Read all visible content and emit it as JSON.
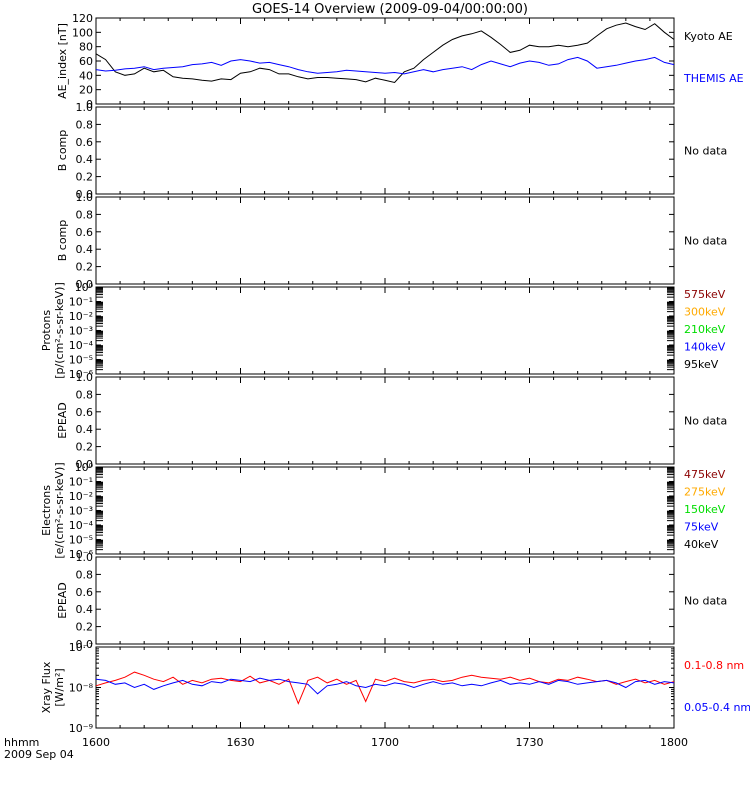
{
  "title": "GOES-14 Overview (2009-09-04/00:00:00)",
  "footer": {
    "line1": "hhmm",
    "line2": "2009 Sep 04"
  },
  "x_ticks": [
    "1600",
    "1630",
    "1700",
    "1730",
    "1800"
  ],
  "colors": {
    "black": "#000000",
    "blue": "#0000ff",
    "red": "#ff0000",
    "dark_red": "#8b0000",
    "orange": "#ffaa00",
    "green": "#00dd00"
  },
  "chart_data": [
    {
      "panel": "ae",
      "type": "line",
      "ylabel": "AE_index [nT]",
      "ylim": [
        0,
        120
      ],
      "y_ticks": [
        "0",
        "20",
        "40",
        "60",
        "80",
        "100",
        "120"
      ],
      "x_range_minutes": [
        0,
        120
      ],
      "series": [
        {
          "name": "Kyoto AE",
          "color": "#000000",
          "x": [
            0,
            2,
            4,
            6,
            8,
            10,
            12,
            14,
            16,
            18,
            20,
            22,
            24,
            26,
            28,
            30,
            32,
            34,
            36,
            38,
            40,
            42,
            44,
            46,
            48,
            50,
            52,
            54,
            56,
            58,
            60,
            62,
            64,
            66,
            68,
            70,
            72,
            74,
            76,
            78,
            80,
            82,
            84,
            86,
            88,
            90,
            92,
            94,
            96,
            98,
            100,
            102,
            104,
            106,
            108,
            110,
            112,
            114,
            116,
            118,
            120
          ],
          "y": [
            70,
            62,
            45,
            40,
            42,
            50,
            45,
            47,
            38,
            36,
            35,
            33,
            32,
            35,
            34,
            43,
            45,
            50,
            48,
            42,
            42,
            38,
            35,
            37,
            37,
            36,
            35,
            34,
            31,
            36,
            33,
            30,
            45,
            50,
            62,
            72,
            82,
            90,
            95,
            98,
            102,
            93,
            83,
            72,
            75,
            82,
            80,
            80,
            82,
            80,
            82,
            85,
            95,
            105,
            110,
            113,
            108,
            104,
            112,
            100,
            90
          ]
        },
        {
          "name": "THEMIS AE",
          "color": "#0000ff",
          "x": [
            0,
            2,
            4,
            6,
            8,
            10,
            12,
            14,
            16,
            18,
            20,
            22,
            24,
            26,
            28,
            30,
            32,
            34,
            36,
            38,
            40,
            42,
            44,
            46,
            48,
            50,
            52,
            54,
            56,
            58,
            60,
            62,
            64,
            66,
            68,
            70,
            72,
            74,
            76,
            78,
            80,
            82,
            84,
            86,
            88,
            90,
            92,
            94,
            96,
            98,
            100,
            102,
            104,
            106,
            108,
            110,
            112,
            114,
            116,
            118,
            120
          ],
          "y": [
            48,
            46,
            47,
            49,
            50,
            52,
            48,
            50,
            51,
            52,
            55,
            56,
            58,
            54,
            60,
            62,
            60,
            57,
            58,
            55,
            52,
            48,
            45,
            43,
            44,
            45,
            47,
            46,
            45,
            44,
            43,
            44,
            42,
            45,
            48,
            45,
            48,
            50,
            52,
            48,
            55,
            60,
            56,
            52,
            57,
            60,
            58,
            54,
            56,
            62,
            65,
            60,
            50,
            52,
            54,
            57,
            60,
            62,
            65,
            58,
            55
          ]
        }
      ]
    },
    {
      "panel": "b1",
      "type": "line",
      "ylabel": "B comp",
      "ylim": [
        0,
        1
      ],
      "y_ticks": [
        "0.0",
        "0.2",
        "0.4",
        "0.6",
        "0.8",
        "1.0"
      ],
      "note": "No data",
      "series": []
    },
    {
      "panel": "b2",
      "type": "line",
      "ylabel": "B comp",
      "ylim": [
        0,
        1
      ],
      "y_ticks": [
        "0.0",
        "0.2",
        "0.4",
        "0.6",
        "0.8",
        "1.0"
      ],
      "note": "No data",
      "series": []
    },
    {
      "panel": "protons",
      "type": "line",
      "scale": "log",
      "ylabel_1": "Protons",
      "ylabel_2": "[p/(cm²-s-sr-keV)]",
      "ylim": [
        1e-06,
        1
      ],
      "y_ticks": [
        "10⁻⁶",
        "10⁻⁵",
        "10⁻⁴",
        "10⁻³",
        "10⁻²",
        "10⁻¹",
        "10⁰"
      ],
      "legend": [
        {
          "label": "575keV",
          "color": "#8b0000"
        },
        {
          "label": "300keV",
          "color": "#ffaa00"
        },
        {
          "label": "210keV",
          "color": "#00dd00"
        },
        {
          "label": "140keV",
          "color": "#0000ff"
        },
        {
          "label": "95keV",
          "color": "#000000"
        }
      ],
      "series": []
    },
    {
      "panel": "epead1",
      "type": "line",
      "ylabel": "EPEAD",
      "ylim": [
        0,
        1
      ],
      "y_ticks": [
        "0.0",
        "0.2",
        "0.4",
        "0.6",
        "0.8",
        "1.0"
      ],
      "note": "No data",
      "series": []
    },
    {
      "panel": "electrons",
      "type": "line",
      "scale": "log",
      "ylabel_1": "Electrons",
      "ylabel_2": "[e/(cm²-s-sr-keV)]",
      "ylim": [
        1e-06,
        1
      ],
      "y_ticks": [
        "10⁻⁶",
        "10⁻⁵",
        "10⁻⁴",
        "10⁻³",
        "10⁻²",
        "10⁻¹",
        "10⁰"
      ],
      "legend": [
        {
          "label": "475keV",
          "color": "#8b0000"
        },
        {
          "label": "275keV",
          "color": "#ffaa00"
        },
        {
          "label": "150keV",
          "color": "#00dd00"
        },
        {
          "label": "75keV",
          "color": "#0000ff"
        },
        {
          "label": "40keV",
          "color": "#000000"
        }
      ],
      "series": []
    },
    {
      "panel": "epead2",
      "type": "line",
      "ylabel": "EPEAD",
      "ylim": [
        0,
        1
      ],
      "y_ticks": [
        "0.0",
        "0.2",
        "0.4",
        "0.6",
        "0.8",
        "1.0"
      ],
      "note": "No data",
      "series": []
    },
    {
      "panel": "xray",
      "type": "line",
      "scale": "log",
      "ylabel_1": "Xray Flux",
      "ylabel_2": "[W/m²]",
      "ylim": [
        1e-09,
        1e-07
      ],
      "y_ticks": [
        "10⁻⁹",
        "10⁻⁸",
        "10⁻⁷"
      ],
      "x_range_minutes": [
        0,
        120
      ],
      "series": [
        {
          "name": "0.1-0.8 nm",
          "color": "#ff0000",
          "x": [
            0,
            2,
            4,
            6,
            8,
            10,
            12,
            14,
            16,
            18,
            20,
            22,
            24,
            26,
            28,
            30,
            32,
            34,
            36,
            38,
            40,
            42,
            44,
            46,
            48,
            50,
            52,
            54,
            56,
            58,
            60,
            62,
            64,
            66,
            68,
            70,
            72,
            74,
            76,
            78,
            80,
            82,
            84,
            86,
            88,
            90,
            92,
            94,
            96,
            98,
            100,
            102,
            104,
            106,
            108,
            110,
            112,
            114,
            116,
            118,
            120
          ],
          "y": [
            1.1e-08,
            1.3e-08,
            1.5e-08,
            1.8e-08,
            2.4e-08,
            2e-08,
            1.6e-08,
            1.4e-08,
            1.8e-08,
            1.2e-08,
            1.5e-08,
            1.3e-08,
            1.6e-08,
            1.7e-08,
            1.5e-08,
            1.4e-08,
            1.9e-08,
            1.3e-08,
            1.5e-08,
            1.2e-08,
            1.6e-08,
            4e-09,
            1.5e-08,
            1.8e-08,
            1.3e-08,
            1.6e-08,
            1.2e-08,
            1.5e-08,
            4.5e-09,
            1.6e-08,
            1.4e-08,
            1.7e-08,
            1.4e-08,
            1.3e-08,
            1.5e-08,
            1.6e-08,
            1.4e-08,
            1.5e-08,
            1.8e-08,
            2e-08,
            1.8e-08,
            1.7e-08,
            1.6e-08,
            1.8e-08,
            1.5e-08,
            1.7e-08,
            1.4e-08,
            1.3e-08,
            1.6e-08,
            1.5e-08,
            1.8e-08,
            1.6e-08,
            1.4e-08,
            1.5e-08,
            1.2e-08,
            1.4e-08,
            1.6e-08,
            1.3e-08,
            1.5e-08,
            1.2e-08,
            1.4e-08
          ]
        },
        {
          "name": "0.05-0.4 nm",
          "color": "#0000ff",
          "x": [
            0,
            2,
            4,
            6,
            8,
            10,
            12,
            14,
            16,
            18,
            20,
            22,
            24,
            26,
            28,
            30,
            32,
            34,
            36,
            38,
            40,
            42,
            44,
            46,
            48,
            50,
            52,
            54,
            56,
            58,
            60,
            62,
            64,
            66,
            68,
            70,
            72,
            74,
            76,
            78,
            80,
            82,
            84,
            86,
            88,
            90,
            92,
            94,
            96,
            98,
            100,
            102,
            104,
            106,
            108,
            110,
            112,
            114,
            116,
            118,
            120
          ],
          "y": [
            1.6e-08,
            1.5e-08,
            1.2e-08,
            1.3e-08,
            1e-08,
            1.2e-08,
            9e-09,
            1.1e-08,
            1.3e-08,
            1.5e-08,
            1.2e-08,
            1.1e-08,
            1.4e-08,
            1.3e-08,
            1.6e-08,
            1.5e-08,
            1.4e-08,
            1.7e-08,
            1.5e-08,
            1.6e-08,
            1.4e-08,
            1.3e-08,
            1.2e-08,
            7e-09,
            1.1e-08,
            1.2e-08,
            1.4e-08,
            1.1e-08,
            1e-08,
            1.2e-08,
            1.1e-08,
            1.3e-08,
            1.2e-08,
            1e-08,
            1.2e-08,
            1.4e-08,
            1.2e-08,
            1.3e-08,
            1.1e-08,
            1.2e-08,
            1.1e-08,
            1.3e-08,
            1.5e-08,
            1.2e-08,
            1.3e-08,
            1.2e-08,
            1.4e-08,
            1.2e-08,
            1.5e-08,
            1.4e-08,
            1.2e-08,
            1.3e-08,
            1.4e-08,
            1.5e-08,
            1.3e-08,
            1e-08,
            1.4e-08,
            1.5e-08,
            1.2e-08,
            1.4e-08,
            1.3e-08
          ]
        }
      ]
    }
  ]
}
